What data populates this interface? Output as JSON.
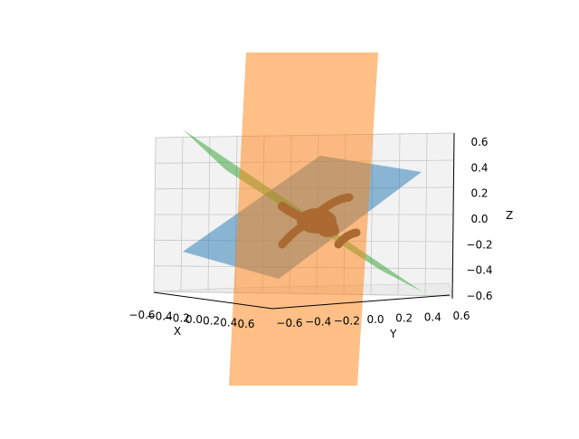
{
  "chart_data": {
    "type": "3d-surface",
    "axes": {
      "x": {
        "label": "X",
        "ticks": [
          "−0.6",
          "−0.4",
          "−0.2",
          "0.0",
          "0.2",
          "0.4",
          "0.6"
        ],
        "range": [
          -0.6,
          0.6
        ]
      },
      "y": {
        "label": "Y",
        "ticks": [
          "−0.6",
          "−0.4",
          "−0.2",
          "0.0",
          "0.2",
          "0.4",
          "0.6"
        ],
        "range": [
          -0.6,
          0.6
        ]
      },
      "z": {
        "label": "Z",
        "ticks": [
          "−0.6",
          "−0.4",
          "−0.2",
          "0.0",
          "0.2",
          "0.4",
          "0.6"
        ],
        "range": [
          -0.6,
          0.6
        ]
      }
    },
    "grid": true,
    "planes": [
      {
        "color": "#1f77b4",
        "opacity": 0.5
      },
      {
        "color": "#2ca02c",
        "opacity": 0.5
      },
      {
        "color": "#ff7f0e",
        "opacity": 0.5
      }
    ],
    "object_color": "#555555"
  }
}
